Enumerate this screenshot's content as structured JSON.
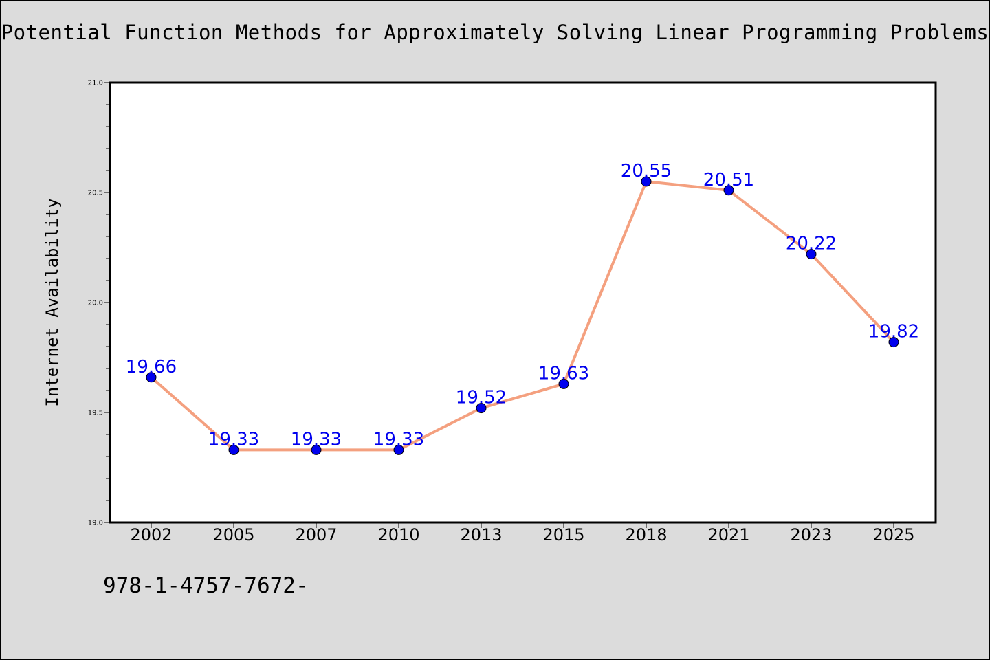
{
  "chart_data": {
    "type": "line",
    "title": "Potential Function Methods for Approximately Solving Linear Programming Problems",
    "xlabel": "",
    "ylabel": "Internet Availability",
    "categories": [
      "2002",
      "2005",
      "2007",
      "2010",
      "2013",
      "2015",
      "2018",
      "2021",
      "2023",
      "2025"
    ],
    "series": [
      {
        "values": [
          19.66,
          19.33,
          19.33,
          19.33,
          19.52,
          19.63,
          20.55,
          20.51,
          20.22,
          19.82
        ],
        "labels": [
          "19.66",
          "19.33",
          "19.33",
          "19.33",
          "19.52",
          "19.63",
          "20.55",
          "20.51",
          "20.22",
          "19.82"
        ]
      }
    ],
    "ylim": [
      19.0,
      21.0
    ],
    "yticks": [
      "19.0",
      "19.5",
      "20.0",
      "20.5",
      "21.0"
    ],
    "grid": false,
    "line_color": "#f4a07f",
    "marker_color": "#0000ee",
    "label_color": "#0000ee"
  },
  "footer": {
    "code": "978-1-4757-7672-"
  }
}
